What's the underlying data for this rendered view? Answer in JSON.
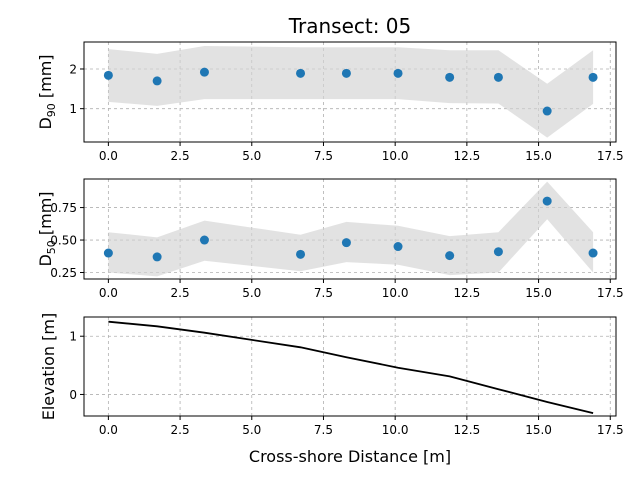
{
  "chart_data": {
    "type": "scatter",
    "title": "Transect: 05",
    "xlabel": "Cross-shore Distance [m]",
    "xlim": [
      -0.85,
      17.7
    ],
    "xticks": [
      0,
      2.5,
      5,
      7.5,
      10,
      12.5,
      15,
      17.5
    ],
    "xtick_labels": [
      "0.0",
      "2.5",
      "5.0",
      "7.5",
      "10.0",
      "12.5",
      "15.0",
      "17.5"
    ],
    "grid": true,
    "panels": [
      {
        "id": "d90",
        "type": "scatter",
        "ylabel_main": "D",
        "ylabel_sub": "90",
        "ylabel_unit": " [mm]",
        "ylim": [
          0.16,
          2.68
        ],
        "yticks": [
          1,
          2
        ],
        "ytick_labels": [
          "1",
          "2"
        ],
        "x": [
          0,
          1.7,
          3.35,
          6.7,
          8.3,
          10.1,
          11.9,
          13.6,
          15.3,
          16.9
        ],
        "y": [
          1.84,
          1.7,
          1.92,
          1.89,
          1.89,
          1.89,
          1.79,
          1.79,
          0.94,
          1.79
        ],
        "band_upper": [
          2.5,
          2.38,
          2.58,
          2.55,
          2.55,
          2.55,
          2.47,
          2.47,
          1.63,
          2.47
        ],
        "band_lower": [
          1.17,
          1.07,
          1.24,
          1.24,
          1.24,
          1.24,
          1.14,
          1.13,
          0.27,
          1.12
        ]
      },
      {
        "id": "d50",
        "type": "scatter",
        "ylabel_main": "D",
        "ylabel_sub": "50",
        "ylabel_unit": " [mm]",
        "ylim": [
          0.2,
          0.97
        ],
        "yticks": [
          0.25,
          0.5,
          0.75
        ],
        "ytick_labels": [
          "0.25",
          "0.50",
          "0.75"
        ],
        "x": [
          0,
          1.7,
          3.35,
          6.7,
          8.3,
          10.1,
          11.9,
          13.6,
          15.3,
          16.9
        ],
        "y": [
          0.4,
          0.37,
          0.5,
          0.39,
          0.48,
          0.45,
          0.38,
          0.41,
          0.8,
          0.4
        ],
        "band_upper": [
          0.56,
          0.52,
          0.65,
          0.54,
          0.64,
          0.61,
          0.53,
          0.56,
          0.95,
          0.56
        ],
        "band_lower": [
          0.25,
          0.22,
          0.34,
          0.26,
          0.33,
          0.31,
          0.23,
          0.25,
          0.66,
          0.25
        ]
      },
      {
        "id": "elevation",
        "type": "line",
        "ylabel_main": "Elevation [m]",
        "ylim": [
          -0.37,
          1.33
        ],
        "yticks": [
          0,
          1
        ],
        "ytick_labels": [
          "0",
          "1"
        ],
        "x": [
          0,
          1.7,
          3.35,
          6.7,
          8.3,
          10.1,
          11.9,
          13.6,
          15.3,
          16.9
        ],
        "y": [
          1.25,
          1.17,
          1.06,
          0.81,
          0.64,
          0.46,
          0.31,
          0.09,
          -0.13,
          -0.32
        ]
      }
    ]
  },
  "colors": {
    "marker": "#1f77b4",
    "band": "#d3d3d3",
    "line": "#000000"
  }
}
